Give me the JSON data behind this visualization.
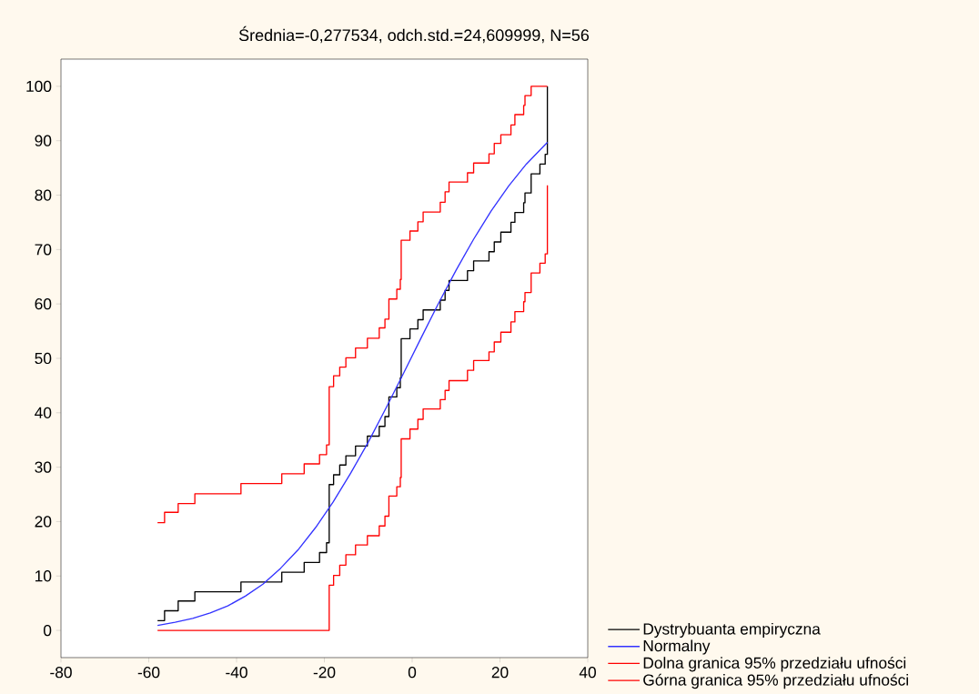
{
  "chart_data": {
    "type": "step",
    "title": "Średnia=-0,277534, odch.std.=24,609999, N=56",
    "xlim": [
      -80,
      40
    ],
    "ylim": [
      -5,
      105
    ],
    "xticks": [
      -80,
      -60,
      -40,
      -20,
      0,
      20,
      40
    ],
    "yticks": [
      0,
      10,
      20,
      30,
      40,
      50,
      60,
      70,
      80,
      90,
      100
    ],
    "legend": "bottom right",
    "series": [
      {
        "name": "Dystrybuanta empiryczna",
        "color": "#000000",
        "x": [
          -58.0,
          -56.4,
          -53.3,
          -49.5,
          -39.0,
          -29.7,
          -24.6,
          -21.1,
          -19.5,
          -18.9,
          -17.9,
          -16.5,
          -15.1,
          -12.9,
          -10.2,
          -7.5,
          -6.2,
          -5.3,
          -3.5,
          -2.7,
          -2.5,
          -0.5,
          1.3,
          2.5,
          6.4,
          7.5,
          8.4,
          12.6,
          14.0,
          17.5,
          18.7,
          20.2,
          22.5,
          23.4,
          25.4,
          25.7,
          27.1,
          29.1,
          30.3,
          30.8
        ],
        "values": [
          1.8,
          3.6,
          5.4,
          7.1,
          8.9,
          10.7,
          12.5,
          14.3,
          16.1,
          26.8,
          28.6,
          30.4,
          32.1,
          33.9,
          35.7,
          37.5,
          39.3,
          42.9,
          44.6,
          46.4,
          53.6,
          55.4,
          57.1,
          58.9,
          60.7,
          62.5,
          64.3,
          66.1,
          67.9,
          69.6,
          71.4,
          73.2,
          75.0,
          76.8,
          78.6,
          80.4,
          83.9,
          85.7,
          87.5,
          100
        ]
      },
      {
        "name": "Normalny",
        "type": "line",
        "color": "#3333ff",
        "x": [
          -58,
          -54,
          -50,
          -46,
          -42,
          -38,
          -34,
          -30,
          -26,
          -22,
          -18,
          -14,
          -10,
          -6,
          -2,
          2,
          6,
          10,
          14,
          18,
          22,
          26,
          30.8
        ],
        "values": [
          0.9,
          1.5,
          2.2,
          3.2,
          4.5,
          6.3,
          8.5,
          11.4,
          14.8,
          18.9,
          23.6,
          28.9,
          34.6,
          40.8,
          47.2,
          53.7,
          60.1,
          66.2,
          71.9,
          77.1,
          81.7,
          85.7,
          89.7
        ]
      },
      {
        "name": "Dolna granica 95% przedziału ufności",
        "color": "#ff0000",
        "x": [
          -58.0,
          -18.9,
          -17.9,
          -16.5,
          -15.1,
          -12.9,
          -10.2,
          -7.5,
          -6.2,
          -5.3,
          -3.5,
          -2.7,
          -2.5,
          -0.5,
          1.3,
          2.5,
          6.4,
          7.5,
          8.4,
          12.6,
          14.0,
          17.5,
          18.7,
          20.2,
          22.5,
          23.4,
          25.4,
          25.7,
          27.1,
          29.1,
          30.3,
          30.8
        ],
        "values": [
          0,
          8.3,
          10.1,
          12.0,
          13.9,
          15.7,
          17.4,
          19.2,
          21.0,
          24.7,
          26.4,
          28.1,
          35.2,
          37.0,
          38.8,
          40.7,
          42.4,
          44.1,
          45.9,
          47.8,
          49.6,
          51.2,
          53.0,
          54.8,
          56.7,
          58.6,
          60.4,
          62.1,
          65.7,
          67.5,
          69.2,
          81.8
        ]
      },
      {
        "name": "Górna granica 95% przedziału ufności",
        "color": "#ff0000",
        "x": [
          -58.0,
          -56.4,
          -53.3,
          -49.5,
          -39.0,
          -29.7,
          -24.6,
          -21.1,
          -19.5,
          -18.9,
          -17.9,
          -16.5,
          -15.1,
          -12.9,
          -10.2,
          -7.5,
          -6.2,
          -5.3,
          -3.5,
          -2.7,
          -2.5,
          -0.5,
          1.3,
          2.5,
          6.4,
          7.5,
          8.4,
          12.6,
          14.0,
          17.5,
          18.7,
          20.2,
          22.5,
          23.4,
          25.4,
          25.7,
          27.1,
          30.8
        ],
        "values": [
          19.8,
          21.7,
          23.3,
          25.1,
          27.0,
          28.8,
          30.6,
          32.3,
          34.1,
          44.8,
          46.8,
          48.4,
          50.1,
          51.9,
          53.7,
          55.6,
          57.2,
          60.9,
          62.7,
          64.5,
          71.7,
          73.4,
          75.1,
          76.9,
          78.7,
          80.6,
          82.4,
          84.1,
          85.9,
          87.6,
          89.5,
          91.1,
          92.9,
          94.8,
          96.5,
          98.3,
          100,
          100
        ]
      }
    ]
  }
}
